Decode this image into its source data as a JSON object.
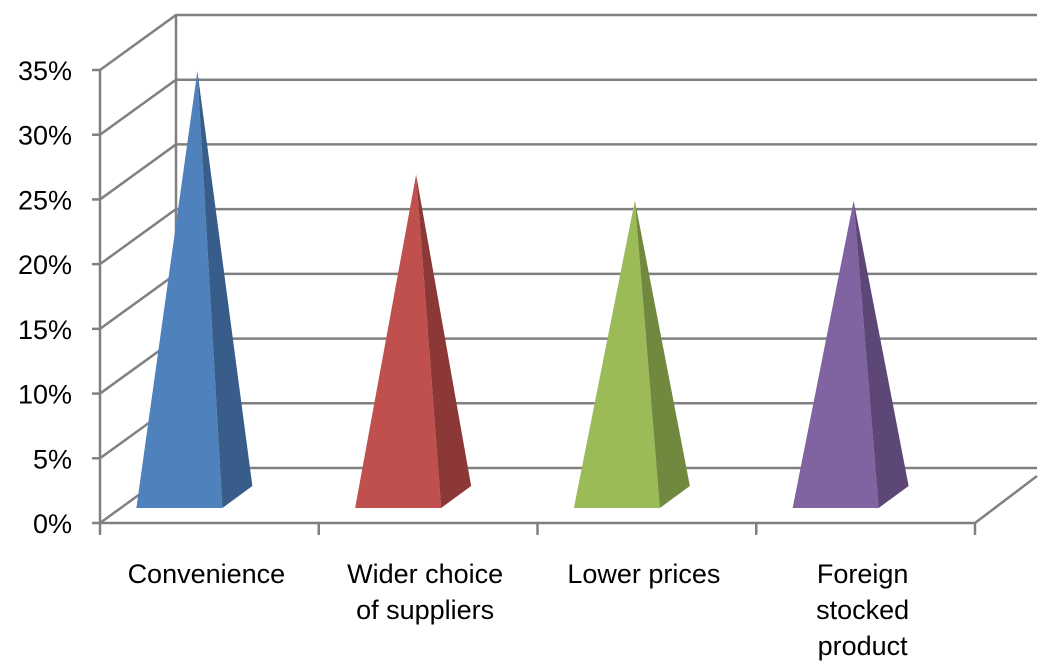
{
  "chart_data": {
    "type": "bar",
    "style": "3d-pyramid",
    "categories": [
      "Convenience",
      "Wider choice of suppliers",
      "Lower prices",
      "Foreign stocked product"
    ],
    "category_label_lines": [
      [
        "Convenience"
      ],
      [
        "Wider choice",
        "of suppliers"
      ],
      [
        "Lower prices"
      ],
      [
        "Foreign",
        "stocked",
        "product"
      ]
    ],
    "values": [
      33,
      25,
      23,
      23
    ],
    "ylim": [
      0,
      35
    ],
    "y_ticks": [
      "0%",
      "5%",
      "10%",
      "15%",
      "20%",
      "25%",
      "30%",
      "35%"
    ],
    "title": "",
    "xlabel": "",
    "ylabel": "",
    "grid": true,
    "legend": "none",
    "colors": [
      "#4F81BD",
      "#C0504D",
      "#9BBB59",
      "#8064A2"
    ],
    "shade_colors": [
      "#385D8A",
      "#8C3836",
      "#71893F",
      "#5C4776"
    ]
  }
}
